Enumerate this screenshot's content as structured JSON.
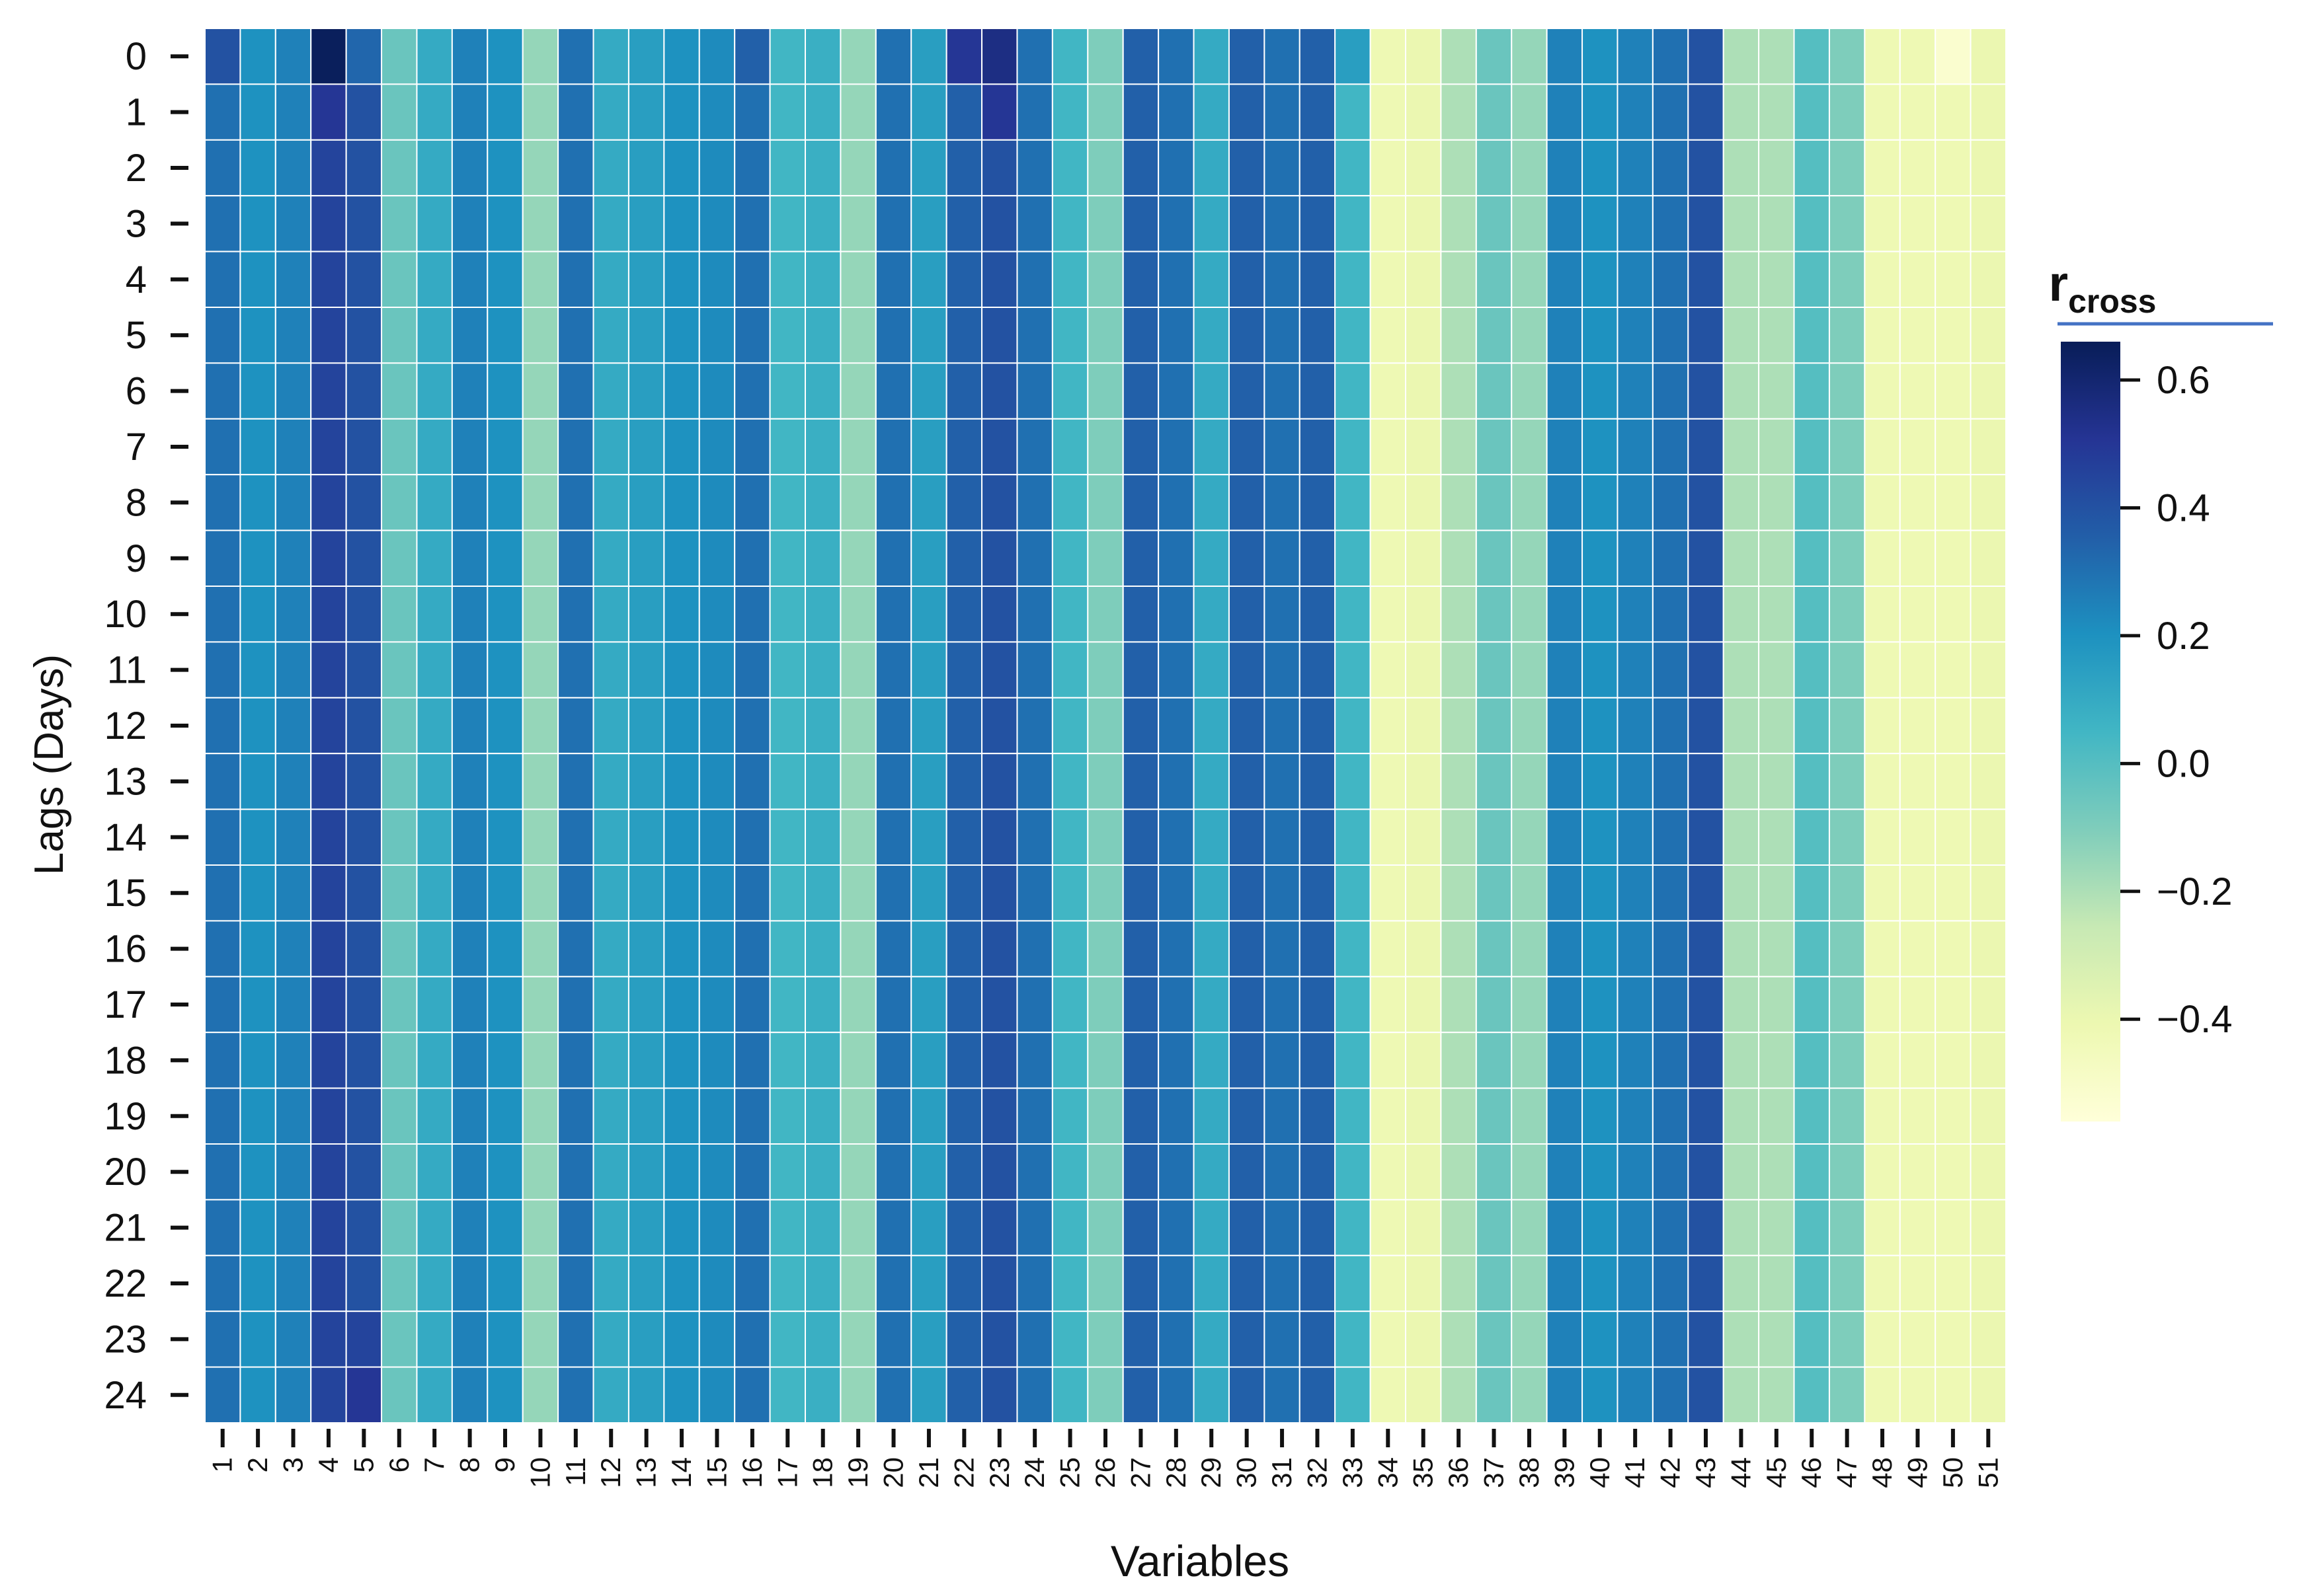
{
  "chart_data": {
    "type": "heatmap",
    "x_label": "Variables",
    "y_label": "Lags (Days)",
    "colorbar_label": {
      "main": "r",
      "sub": "cross"
    },
    "x_categories": [
      "1",
      "2",
      "3",
      "4",
      "5",
      "6",
      "7",
      "8",
      "9",
      "10",
      "11",
      "12",
      "13",
      "14",
      "15",
      "16",
      "17",
      "18",
      "19",
      "20",
      "21",
      "22",
      "23",
      "24",
      "25",
      "26",
      "27",
      "28",
      "29",
      "30",
      "31",
      "32",
      "33",
      "34",
      "35",
      "36",
      "37",
      "38",
      "39",
      "40",
      "41",
      "42",
      "43",
      "44",
      "45",
      "46",
      "47",
      "48",
      "49",
      "50",
      "51"
    ],
    "y_categories": [
      "0",
      "1",
      "2",
      "3",
      "4",
      "5",
      "6",
      "7",
      "8",
      "9",
      "10",
      "11",
      "12",
      "13",
      "14",
      "15",
      "16",
      "17",
      "18",
      "19",
      "20",
      "21",
      "22",
      "23",
      "24"
    ],
    "colorscale": [
      "#ffffd9",
      "#edf8b1",
      "#c7e9b4",
      "#7fcdbb",
      "#41b6c4",
      "#1d91c0",
      "#225ea8",
      "#253494",
      "#081d58"
    ],
    "clim": [
      -0.56,
      0.66
    ],
    "cticks": [
      0.6,
      0.4,
      0.2,
      {
        "value": 0,
        "label": "0.0"
      },
      {
        "value": -0.2,
        "label": "−0.2"
      },
      {
        "value": -0.4,
        "label": "−0.4"
      }
    ],
    "values": [
      [
        0.4,
        0.2,
        0.25,
        0.65,
        0.33,
        -0.05,
        0.1,
        0.25,
        0.2,
        -0.15,
        0.3,
        0.1,
        0.15,
        0.2,
        0.22,
        0.35,
        0.05,
        0.08,
        -0.15,
        0.3,
        0.15,
        0.5,
        0.55,
        0.3,
        0.05,
        -0.1,
        0.35,
        0.3,
        0.1,
        0.35,
        0.3,
        0.35,
        0.15,
        -0.42,
        -0.4,
        -0.2,
        -0.05,
        -0.15,
        0.25,
        0.2,
        0.25,
        0.3,
        0.4,
        -0.2,
        -0.2,
        0,
        -0.1,
        -0.42,
        -0.42,
        -0.52,
        -0.4
      ],
      [
        0.3,
        0.2,
        0.25,
        0.5,
        0.4,
        -0.05,
        0.1,
        0.25,
        0.2,
        -0.15,
        0.3,
        0.1,
        0.15,
        0.2,
        0.22,
        0.3,
        0.05,
        0.08,
        -0.15,
        0.3,
        0.15,
        0.35,
        0.5,
        0.3,
        0.05,
        -0.1,
        0.35,
        0.3,
        0.1,
        0.35,
        0.3,
        0.35,
        0.05,
        -0.42,
        -0.4,
        -0.2,
        -0.05,
        -0.15,
        0.25,
        0.2,
        0.25,
        0.3,
        0.4,
        -0.2,
        -0.2,
        0,
        -0.1,
        -0.42,
        -0.42,
        -0.42,
        -0.4
      ],
      [
        0.3,
        0.2,
        0.25,
        0.45,
        0.4,
        -0.05,
        0.1,
        0.25,
        0.2,
        -0.15,
        0.3,
        0.1,
        0.15,
        0.2,
        0.22,
        0.3,
        0.05,
        0.08,
        -0.15,
        0.3,
        0.15,
        0.35,
        0.4,
        0.3,
        0.05,
        -0.1,
        0.35,
        0.3,
        0.1,
        0.35,
        0.3,
        0.35,
        0.05,
        -0.42,
        -0.4,
        -0.2,
        -0.05,
        -0.15,
        0.25,
        0.2,
        0.25,
        0.3,
        0.4,
        -0.2,
        -0.2,
        0,
        -0.1,
        -0.42,
        -0.42,
        -0.42,
        -0.4
      ],
      [
        0.3,
        0.2,
        0.25,
        0.45,
        0.4,
        -0.05,
        0.1,
        0.25,
        0.2,
        -0.15,
        0.3,
        0.1,
        0.15,
        0.2,
        0.22,
        0.3,
        0.05,
        0.08,
        -0.15,
        0.3,
        0.15,
        0.35,
        0.4,
        0.3,
        0.05,
        -0.1,
        0.35,
        0.3,
        0.1,
        0.35,
        0.3,
        0.35,
        0.05,
        -0.42,
        -0.4,
        -0.2,
        -0.05,
        -0.15,
        0.25,
        0.2,
        0.25,
        0.3,
        0.4,
        -0.2,
        -0.2,
        0,
        -0.1,
        -0.42,
        -0.42,
        -0.42,
        -0.4
      ],
      [
        0.3,
        0.2,
        0.25,
        0.45,
        0.4,
        -0.05,
        0.1,
        0.25,
        0.2,
        -0.15,
        0.3,
        0.1,
        0.15,
        0.2,
        0.22,
        0.3,
        0.05,
        0.08,
        -0.15,
        0.3,
        0.15,
        0.35,
        0.4,
        0.3,
        0.05,
        -0.1,
        0.35,
        0.3,
        0.1,
        0.35,
        0.3,
        0.35,
        0.05,
        -0.42,
        -0.4,
        -0.2,
        -0.05,
        -0.15,
        0.25,
        0.2,
        0.25,
        0.3,
        0.4,
        -0.2,
        -0.2,
        0,
        -0.1,
        -0.42,
        -0.42,
        -0.42,
        -0.4
      ],
      [
        0.3,
        0.2,
        0.25,
        0.45,
        0.4,
        -0.05,
        0.1,
        0.25,
        0.2,
        -0.15,
        0.3,
        0.1,
        0.15,
        0.2,
        0.22,
        0.3,
        0.05,
        0.08,
        -0.15,
        0.3,
        0.15,
        0.35,
        0.4,
        0.3,
        0.05,
        -0.1,
        0.35,
        0.3,
        0.1,
        0.35,
        0.3,
        0.35,
        0.05,
        -0.42,
        -0.4,
        -0.2,
        -0.05,
        -0.15,
        0.25,
        0.2,
        0.25,
        0.3,
        0.4,
        -0.2,
        -0.2,
        0,
        -0.1,
        -0.42,
        -0.42,
        -0.42,
        -0.4
      ],
      [
        0.3,
        0.2,
        0.25,
        0.45,
        0.4,
        -0.05,
        0.1,
        0.25,
        0.2,
        -0.15,
        0.3,
        0.1,
        0.15,
        0.2,
        0.22,
        0.3,
        0.05,
        0.08,
        -0.15,
        0.3,
        0.15,
        0.35,
        0.4,
        0.3,
        0.05,
        -0.1,
        0.35,
        0.3,
        0.1,
        0.35,
        0.3,
        0.35,
        0.05,
        -0.42,
        -0.4,
        -0.2,
        -0.05,
        -0.15,
        0.25,
        0.2,
        0.25,
        0.3,
        0.4,
        -0.2,
        -0.2,
        0,
        -0.1,
        -0.42,
        -0.42,
        -0.42,
        -0.4
      ],
      [
        0.3,
        0.2,
        0.25,
        0.45,
        0.4,
        -0.05,
        0.1,
        0.25,
        0.2,
        -0.15,
        0.3,
        0.1,
        0.15,
        0.2,
        0.22,
        0.3,
        0.05,
        0.08,
        -0.15,
        0.3,
        0.15,
        0.35,
        0.4,
        0.3,
        0.05,
        -0.1,
        0.35,
        0.3,
        0.1,
        0.35,
        0.3,
        0.35,
        0.05,
        -0.42,
        -0.4,
        -0.2,
        -0.05,
        -0.15,
        0.25,
        0.2,
        0.25,
        0.3,
        0.4,
        -0.2,
        -0.2,
        0,
        -0.1,
        -0.42,
        -0.42,
        -0.42,
        -0.4
      ],
      [
        0.3,
        0.2,
        0.25,
        0.45,
        0.4,
        -0.05,
        0.1,
        0.25,
        0.2,
        -0.15,
        0.3,
        0.1,
        0.15,
        0.2,
        0.22,
        0.3,
        0.05,
        0.08,
        -0.15,
        0.3,
        0.15,
        0.35,
        0.4,
        0.3,
        0.05,
        -0.1,
        0.35,
        0.3,
        0.1,
        0.35,
        0.3,
        0.35,
        0.05,
        -0.42,
        -0.4,
        -0.2,
        -0.05,
        -0.15,
        0.25,
        0.2,
        0.25,
        0.3,
        0.4,
        -0.2,
        -0.2,
        0,
        -0.1,
        -0.42,
        -0.42,
        -0.42,
        -0.4
      ],
      [
        0.3,
        0.2,
        0.25,
        0.45,
        0.4,
        -0.05,
        0.1,
        0.25,
        0.2,
        -0.15,
        0.3,
        0.1,
        0.15,
        0.2,
        0.22,
        0.3,
        0.05,
        0.08,
        -0.15,
        0.3,
        0.15,
        0.35,
        0.4,
        0.3,
        0.05,
        -0.1,
        0.35,
        0.3,
        0.1,
        0.35,
        0.3,
        0.35,
        0.05,
        -0.42,
        -0.4,
        -0.2,
        -0.05,
        -0.15,
        0.25,
        0.2,
        0.25,
        0.3,
        0.4,
        -0.2,
        -0.2,
        0,
        -0.1,
        -0.42,
        -0.42,
        -0.42,
        -0.4
      ],
      [
        0.3,
        0.2,
        0.25,
        0.45,
        0.4,
        -0.05,
        0.1,
        0.25,
        0.2,
        -0.15,
        0.3,
        0.1,
        0.15,
        0.2,
        0.22,
        0.3,
        0.05,
        0.08,
        -0.15,
        0.3,
        0.15,
        0.35,
        0.4,
        0.3,
        0.05,
        -0.1,
        0.35,
        0.3,
        0.1,
        0.35,
        0.3,
        0.35,
        0.05,
        -0.42,
        -0.4,
        -0.2,
        -0.05,
        -0.15,
        0.25,
        0.2,
        0.25,
        0.3,
        0.4,
        -0.2,
        -0.2,
        0,
        -0.1,
        -0.42,
        -0.42,
        -0.42,
        -0.4
      ],
      [
        0.3,
        0.2,
        0.25,
        0.45,
        0.4,
        -0.05,
        0.1,
        0.25,
        0.2,
        -0.15,
        0.3,
        0.1,
        0.15,
        0.2,
        0.22,
        0.3,
        0.05,
        0.08,
        -0.15,
        0.3,
        0.15,
        0.35,
        0.4,
        0.3,
        0.05,
        -0.1,
        0.35,
        0.3,
        0.1,
        0.35,
        0.3,
        0.35,
        0.05,
        -0.42,
        -0.4,
        -0.2,
        -0.05,
        -0.15,
        0.25,
        0.2,
        0.25,
        0.3,
        0.4,
        -0.2,
        -0.2,
        0,
        -0.1,
        -0.42,
        -0.42,
        -0.42,
        -0.4
      ],
      [
        0.3,
        0.2,
        0.25,
        0.45,
        0.4,
        -0.05,
        0.1,
        0.25,
        0.2,
        -0.15,
        0.3,
        0.1,
        0.15,
        0.2,
        0.22,
        0.3,
        0.05,
        0.08,
        -0.15,
        0.3,
        0.15,
        0.35,
        0.4,
        0.3,
        0.05,
        -0.1,
        0.35,
        0.3,
        0.1,
        0.35,
        0.3,
        0.35,
        0.05,
        -0.42,
        -0.4,
        -0.2,
        -0.05,
        -0.15,
        0.25,
        0.2,
        0.25,
        0.3,
        0.4,
        -0.2,
        -0.2,
        0,
        -0.1,
        -0.42,
        -0.42,
        -0.42,
        -0.4
      ],
      [
        0.3,
        0.2,
        0.25,
        0.45,
        0.4,
        -0.05,
        0.1,
        0.25,
        0.2,
        -0.15,
        0.3,
        0.1,
        0.15,
        0.2,
        0.22,
        0.3,
        0.05,
        0.08,
        -0.15,
        0.3,
        0.15,
        0.35,
        0.4,
        0.3,
        0.05,
        -0.1,
        0.35,
        0.3,
        0.1,
        0.35,
        0.3,
        0.35,
        0.05,
        -0.42,
        -0.4,
        -0.2,
        -0.05,
        -0.15,
        0.25,
        0.2,
        0.25,
        0.3,
        0.4,
        -0.2,
        -0.2,
        0,
        -0.1,
        -0.42,
        -0.42,
        -0.42,
        -0.4
      ],
      [
        0.3,
        0.2,
        0.25,
        0.45,
        0.4,
        -0.05,
        0.1,
        0.25,
        0.2,
        -0.15,
        0.3,
        0.1,
        0.15,
        0.2,
        0.22,
        0.3,
        0.05,
        0.08,
        -0.15,
        0.3,
        0.15,
        0.35,
        0.4,
        0.3,
        0.05,
        -0.1,
        0.35,
        0.3,
        0.1,
        0.35,
        0.3,
        0.35,
        0.05,
        -0.42,
        -0.4,
        -0.2,
        -0.05,
        -0.15,
        0.25,
        0.2,
        0.25,
        0.3,
        0.4,
        -0.2,
        -0.2,
        0,
        -0.1,
        -0.42,
        -0.42,
        -0.42,
        -0.4
      ],
      [
        0.3,
        0.2,
        0.25,
        0.45,
        0.4,
        -0.05,
        0.1,
        0.25,
        0.2,
        -0.15,
        0.3,
        0.1,
        0.15,
        0.2,
        0.22,
        0.3,
        0.05,
        0.08,
        -0.15,
        0.3,
        0.15,
        0.35,
        0.4,
        0.3,
        0.05,
        -0.1,
        0.35,
        0.3,
        0.1,
        0.35,
        0.3,
        0.35,
        0.05,
        -0.42,
        -0.4,
        -0.2,
        -0.05,
        -0.15,
        0.25,
        0.2,
        0.25,
        0.3,
        0.4,
        -0.2,
        -0.2,
        0,
        -0.1,
        -0.42,
        -0.42,
        -0.42,
        -0.4
      ],
      [
        0.3,
        0.2,
        0.25,
        0.45,
        0.4,
        -0.05,
        0.1,
        0.25,
        0.2,
        -0.15,
        0.3,
        0.1,
        0.15,
        0.2,
        0.22,
        0.3,
        0.05,
        0.08,
        -0.15,
        0.3,
        0.15,
        0.35,
        0.4,
        0.3,
        0.05,
        -0.1,
        0.35,
        0.3,
        0.1,
        0.35,
        0.3,
        0.35,
        0.05,
        -0.42,
        -0.4,
        -0.2,
        -0.05,
        -0.15,
        0.25,
        0.2,
        0.25,
        0.3,
        0.4,
        -0.2,
        -0.2,
        0,
        -0.1,
        -0.42,
        -0.42,
        -0.42,
        -0.4
      ],
      [
        0.3,
        0.2,
        0.25,
        0.45,
        0.4,
        -0.05,
        0.1,
        0.25,
        0.2,
        -0.15,
        0.3,
        0.1,
        0.15,
        0.2,
        0.22,
        0.3,
        0.05,
        0.08,
        -0.15,
        0.3,
        0.15,
        0.35,
        0.4,
        0.3,
        0.05,
        -0.1,
        0.35,
        0.3,
        0.1,
        0.35,
        0.3,
        0.35,
        0.05,
        -0.42,
        -0.4,
        -0.2,
        -0.05,
        -0.15,
        0.25,
        0.2,
        0.25,
        0.3,
        0.4,
        -0.2,
        -0.2,
        0,
        -0.1,
        -0.42,
        -0.42,
        -0.42,
        -0.4
      ],
      [
        0.3,
        0.2,
        0.25,
        0.45,
        0.4,
        -0.05,
        0.1,
        0.25,
        0.2,
        -0.15,
        0.3,
        0.1,
        0.15,
        0.2,
        0.22,
        0.3,
        0.05,
        0.08,
        -0.15,
        0.3,
        0.15,
        0.35,
        0.4,
        0.3,
        0.05,
        -0.1,
        0.35,
        0.3,
        0.1,
        0.35,
        0.3,
        0.35,
        0.05,
        -0.42,
        -0.4,
        -0.2,
        -0.05,
        -0.15,
        0.25,
        0.2,
        0.25,
        0.3,
        0.4,
        -0.2,
        -0.2,
        0,
        -0.1,
        -0.42,
        -0.42,
        -0.42,
        -0.4
      ],
      [
        0.3,
        0.2,
        0.25,
        0.45,
        0.4,
        -0.05,
        0.1,
        0.25,
        0.2,
        -0.15,
        0.3,
        0.1,
        0.15,
        0.2,
        0.22,
        0.3,
        0.05,
        0.08,
        -0.15,
        0.3,
        0.15,
        0.35,
        0.4,
        0.3,
        0.05,
        -0.1,
        0.35,
        0.3,
        0.1,
        0.35,
        0.3,
        0.35,
        0.05,
        -0.42,
        -0.4,
        -0.2,
        -0.05,
        -0.15,
        0.25,
        0.2,
        0.25,
        0.3,
        0.4,
        -0.2,
        -0.2,
        0,
        -0.1,
        -0.42,
        -0.42,
        -0.42,
        -0.4
      ],
      [
        0.3,
        0.2,
        0.25,
        0.45,
        0.4,
        -0.05,
        0.1,
        0.25,
        0.2,
        -0.15,
        0.3,
        0.1,
        0.15,
        0.2,
        0.22,
        0.3,
        0.05,
        0.08,
        -0.15,
        0.3,
        0.15,
        0.35,
        0.4,
        0.3,
        0.05,
        -0.1,
        0.35,
        0.3,
        0.1,
        0.35,
        0.3,
        0.35,
        0.05,
        -0.42,
        -0.4,
        -0.2,
        -0.05,
        -0.15,
        0.25,
        0.2,
        0.25,
        0.3,
        0.4,
        -0.2,
        -0.2,
        0,
        -0.1,
        -0.42,
        -0.42,
        -0.42,
        -0.4
      ],
      [
        0.3,
        0.2,
        0.25,
        0.45,
        0.4,
        -0.05,
        0.1,
        0.25,
        0.2,
        -0.15,
        0.3,
        0.1,
        0.15,
        0.2,
        0.22,
        0.3,
        0.05,
        0.08,
        -0.15,
        0.3,
        0.15,
        0.35,
        0.4,
        0.3,
        0.05,
        -0.1,
        0.35,
        0.3,
        0.1,
        0.35,
        0.3,
        0.35,
        0.05,
        -0.42,
        -0.4,
        -0.2,
        -0.05,
        -0.15,
        0.25,
        0.2,
        0.25,
        0.3,
        0.4,
        -0.2,
        -0.2,
        0,
        -0.1,
        -0.42,
        -0.42,
        -0.42,
        -0.4
      ],
      [
        0.3,
        0.2,
        0.25,
        0.45,
        0.4,
        -0.05,
        0.1,
        0.25,
        0.2,
        -0.15,
        0.3,
        0.1,
        0.15,
        0.2,
        0.22,
        0.3,
        0.05,
        0.08,
        -0.15,
        0.3,
        0.15,
        0.35,
        0.4,
        0.3,
        0.05,
        -0.1,
        0.35,
        0.3,
        0.1,
        0.35,
        0.3,
        0.35,
        0.05,
        -0.42,
        -0.4,
        -0.2,
        -0.05,
        -0.15,
        0.25,
        0.2,
        0.25,
        0.3,
        0.4,
        -0.2,
        -0.2,
        0,
        -0.1,
        -0.42,
        -0.42,
        -0.42,
        -0.4
      ],
      [
        0.3,
        0.2,
        0.25,
        0.45,
        0.45,
        -0.05,
        0.1,
        0.25,
        0.2,
        -0.15,
        0.3,
        0.1,
        0.15,
        0.2,
        0.22,
        0.3,
        0.05,
        0.08,
        -0.15,
        0.3,
        0.15,
        0.35,
        0.4,
        0.3,
        0.05,
        -0.1,
        0.35,
        0.3,
        0.1,
        0.35,
        0.3,
        0.35,
        0.05,
        -0.42,
        -0.4,
        -0.2,
        -0.05,
        -0.15,
        0.25,
        0.2,
        0.25,
        0.3,
        0.4,
        -0.2,
        -0.2,
        0,
        -0.1,
        -0.42,
        -0.42,
        -0.42,
        -0.4
      ],
      [
        0.3,
        0.2,
        0.25,
        0.45,
        0.5,
        -0.05,
        0.1,
        0.25,
        0.2,
        -0.15,
        0.3,
        0.1,
        0.15,
        0.2,
        0.22,
        0.3,
        0.05,
        0.08,
        -0.15,
        0.3,
        0.15,
        0.35,
        0.4,
        0.3,
        0.05,
        -0.1,
        0.35,
        0.3,
        0.1,
        0.35,
        0.3,
        0.35,
        0.05,
        -0.42,
        -0.4,
        -0.2,
        -0.05,
        -0.15,
        0.25,
        0.2,
        0.25,
        0.3,
        0.4,
        -0.2,
        -0.2,
        0,
        -0.1,
        -0.42,
        -0.42,
        -0.42,
        -0.4
      ]
    ]
  }
}
